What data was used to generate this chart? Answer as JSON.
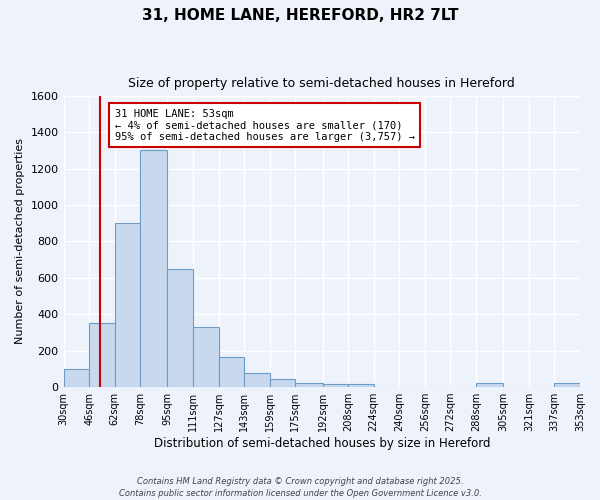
{
  "title": "31, HOME LANE, HEREFORD, HR2 7LT",
  "subtitle": "Size of property relative to semi-detached houses in Hereford",
  "xlabel": "Distribution of semi-detached houses by size in Hereford",
  "ylabel": "Number of semi-detached properties",
  "bar_color": "#c8d9ee",
  "bar_edge_color": "#6b9dc8",
  "bin_edges": [
    30,
    46,
    62,
    78,
    95,
    111,
    127,
    143,
    159,
    175,
    192,
    208,
    224,
    240,
    256,
    272,
    288,
    305,
    321,
    337,
    353
  ],
  "bin_labels": [
    "30sqm",
    "46sqm",
    "62sqm",
    "78sqm",
    "95sqm",
    "111sqm",
    "127sqm",
    "143sqm",
    "159sqm",
    "175sqm",
    "192sqm",
    "208sqm",
    "224sqm",
    "240sqm",
    "256sqm",
    "272sqm",
    "288sqm",
    "305sqm",
    "321sqm",
    "337sqm",
    "353sqm"
  ],
  "counts": [
    100,
    350,
    900,
    1300,
    650,
    330,
    165,
    80,
    45,
    25,
    15,
    15,
    0,
    0,
    0,
    0,
    20,
    0,
    0,
    20,
    0
  ],
  "property_size": 53,
  "property_line_color": "#cc0000",
  "ylim": [
    0,
    1600
  ],
  "yticks": [
    0,
    200,
    400,
    600,
    800,
    1000,
    1200,
    1400,
    1600
  ],
  "annotation_title": "31 HOME LANE: 53sqm",
  "annotation_line1": "← 4% of semi-detached houses are smaller (170)",
  "annotation_line2": "95% of semi-detached houses are larger (3,757) →",
  "annotation_border_color": "#cc0000",
  "background_color": "#eef2fb",
  "grid_color": "#ffffff",
  "footer_line1": "Contains HM Land Registry data © Crown copyright and database right 2025.",
  "footer_line2": "Contains public sector information licensed under the Open Government Licence v3.0."
}
